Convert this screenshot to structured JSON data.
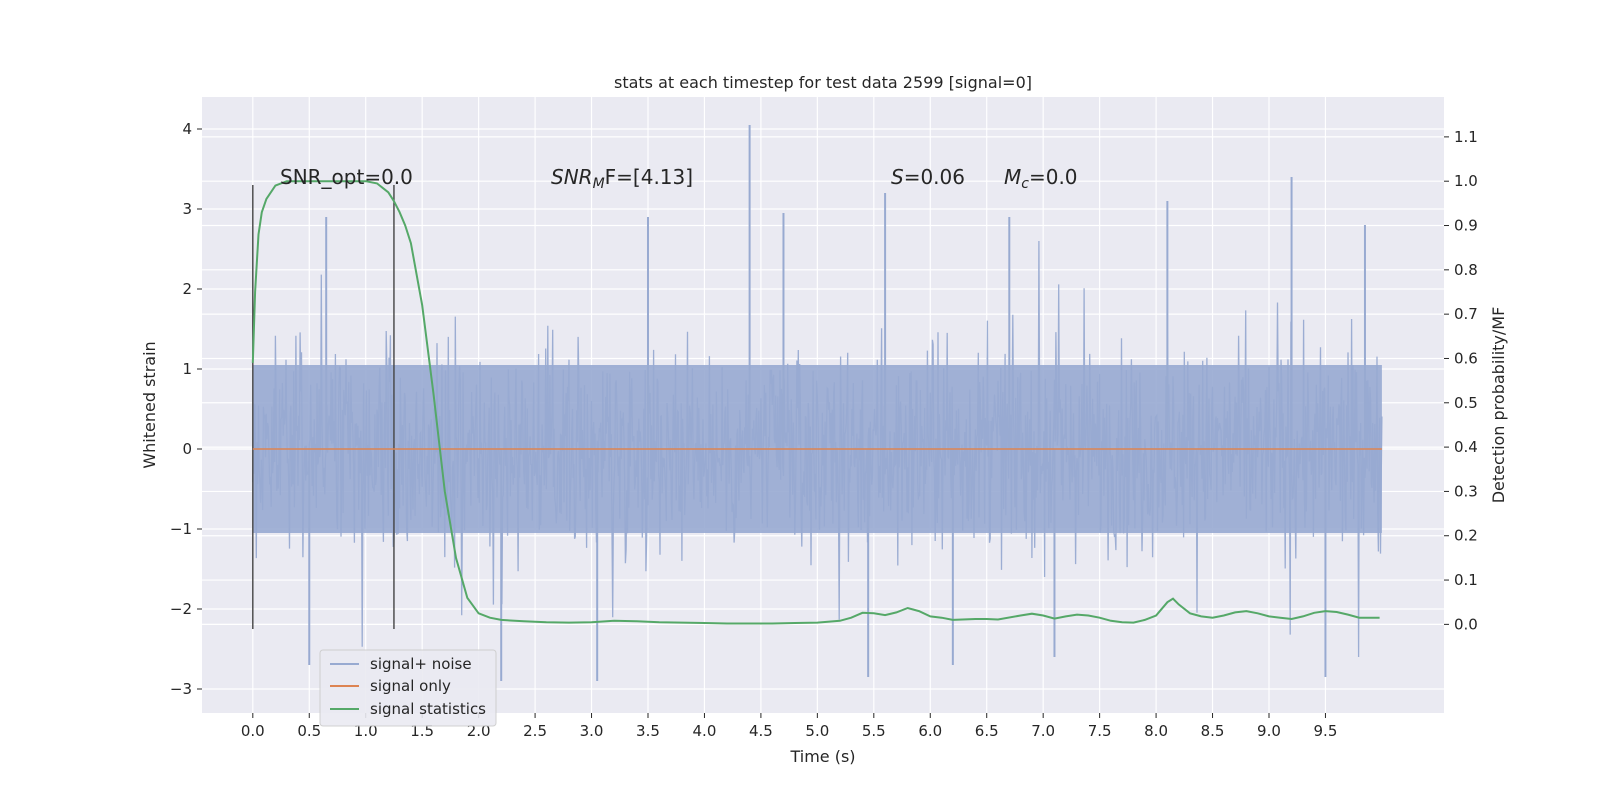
{
  "chart_data": {
    "type": "line",
    "title": "stats at each timestep for test data 2599 [signal=0]",
    "xlabel": "Time (s)",
    "ylabel": "Whitened strain",
    "ylabel_right": "Detection probability/MF",
    "xlim": [
      -0.45,
      10.55
    ],
    "ylim": [
      -3.3,
      4.4
    ],
    "ylim_right": [
      -0.2,
      1.19
    ],
    "x_ticks": [
      "0.0",
      "0.5",
      "1.0",
      "1.5",
      "2.0",
      "2.5",
      "3.0",
      "3.5",
      "4.0",
      "4.5",
      "5.0",
      "5.5",
      "6.0",
      "6.5",
      "7.0",
      "7.5",
      "8.0",
      "8.5",
      "9.0",
      "9.5"
    ],
    "x_tick_values": [
      0,
      0.5,
      1,
      1.5,
      2,
      2.5,
      3,
      3.5,
      4,
      4.5,
      5,
      5.5,
      6,
      6.5,
      7,
      7.5,
      8,
      8.5,
      9,
      9.5
    ],
    "y_ticks": [
      "−3",
      "−2",
      "−1",
      "0",
      "1",
      "2",
      "3",
      "4"
    ],
    "y_tick_values": [
      -3,
      -2,
      -1,
      0,
      1,
      2,
      3,
      4
    ],
    "y_right_ticks": [
      "0.0",
      "0.1",
      "0.2",
      "0.3",
      "0.4",
      "0.5",
      "0.6",
      "0.7",
      "0.8",
      "0.9",
      "1.0",
      "1.1"
    ],
    "y_right_tick_values": [
      0,
      0.1,
      0.2,
      0.3,
      0.4,
      0.5,
      0.6,
      0.7,
      0.8,
      0.9,
      1.0,
      1.1
    ],
    "grid": true,
    "legend_position": "lower-left",
    "annotations": {
      "snr_opt": "SNR_opt=0.0",
      "snr_mf_var": "SNR",
      "snr_mf_sub": "M",
      "snr_mf_tail": "F=[4.13]",
      "s_var": "S",
      "s_val": "=0.06",
      "mc_var": "M",
      "mc_sub": "c",
      "mc_val": "=0.0"
    },
    "vertical_lines": [
      {
        "x": 0.0,
        "ymin": -2.25,
        "ymax": 3.3
      },
      {
        "x": 1.25,
        "ymin": -2.25,
        "ymax": 3.3
      }
    ],
    "series": [
      {
        "name": "signal+ noise",
        "color": "#98aad1",
        "axis": "left",
        "description_of_envelope": "dense noise between about -1.3 and +1.3 with spikes",
        "x_range": [
          0,
          10
        ],
        "spikes_up": [
          [
            4.4,
            4.05
          ],
          [
            9.2,
            3.4
          ],
          [
            5.6,
            3.2
          ],
          [
            8.1,
            3.1
          ],
          [
            0.65,
            2.9
          ],
          [
            3.5,
            2.9
          ],
          [
            4.7,
            2.95
          ],
          [
            6.7,
            2.9
          ],
          [
            9.85,
            2.8
          ]
        ],
        "spikes_down": [
          [
            2.2,
            -2.9
          ],
          [
            3.05,
            -2.9
          ],
          [
            5.45,
            -2.85
          ],
          [
            9.5,
            -2.85
          ],
          [
            0.5,
            -2.7
          ],
          [
            6.2,
            -2.7
          ],
          [
            7.1,
            -2.6
          ]
        ]
      },
      {
        "name": "signal only",
        "color": "#dd8452",
        "axis": "left",
        "x": [
          0,
          10
        ],
        "y": [
          0,
          0
        ]
      },
      {
        "name": "signal statistics",
        "color": "#55a868",
        "axis": "right",
        "x": [
          0.0,
          0.02,
          0.05,
          0.08,
          0.12,
          0.2,
          0.3,
          0.5,
          0.8,
          1.0,
          1.1,
          1.2,
          1.25,
          1.3,
          1.35,
          1.4,
          1.5,
          1.6,
          1.7,
          1.8,
          1.9,
          2.0,
          2.1,
          2.2,
          2.4,
          2.6,
          2.8,
          3.0,
          3.2,
          3.4,
          3.6,
          3.8,
          4.0,
          4.2,
          4.4,
          4.6,
          4.8,
          5.0,
          5.2,
          5.3,
          5.4,
          5.5,
          5.6,
          5.7,
          5.8,
          5.9,
          6.0,
          6.1,
          6.2,
          6.4,
          6.5,
          6.6,
          6.8,
          6.9,
          7.0,
          7.1,
          7.2,
          7.3,
          7.4,
          7.5,
          7.6,
          7.7,
          7.8,
          7.9,
          8.0,
          8.1,
          8.15,
          8.2,
          8.3,
          8.4,
          8.5,
          8.6,
          8.7,
          8.8,
          8.9,
          9.0,
          9.1,
          9.2,
          9.3,
          9.4,
          9.5,
          9.6,
          9.7,
          9.8,
          9.9,
          9.98
        ],
        "y": [
          0.59,
          0.75,
          0.88,
          0.93,
          0.96,
          0.99,
          1.0,
          1.0,
          1.0,
          1.0,
          0.995,
          0.975,
          0.955,
          0.93,
          0.9,
          0.86,
          0.72,
          0.52,
          0.3,
          0.15,
          0.06,
          0.025,
          0.015,
          0.01,
          0.007,
          0.005,
          0.004,
          0.005,
          0.008,
          0.007,
          0.005,
          0.004,
          0.003,
          0.002,
          0.002,
          0.002,
          0.003,
          0.004,
          0.008,
          0.015,
          0.026,
          0.025,
          0.021,
          0.027,
          0.037,
          0.03,
          0.018,
          0.015,
          0.01,
          0.012,
          0.012,
          0.011,
          0.02,
          0.024,
          0.02,
          0.013,
          0.018,
          0.022,
          0.02,
          0.015,
          0.008,
          0.005,
          0.004,
          0.01,
          0.02,
          0.05,
          0.058,
          0.045,
          0.025,
          0.018,
          0.015,
          0.02,
          0.027,
          0.03,
          0.025,
          0.018,
          0.015,
          0.012,
          0.018,
          0.026,
          0.03,
          0.028,
          0.022,
          0.015,
          0.015,
          0.015
        ]
      }
    ]
  }
}
